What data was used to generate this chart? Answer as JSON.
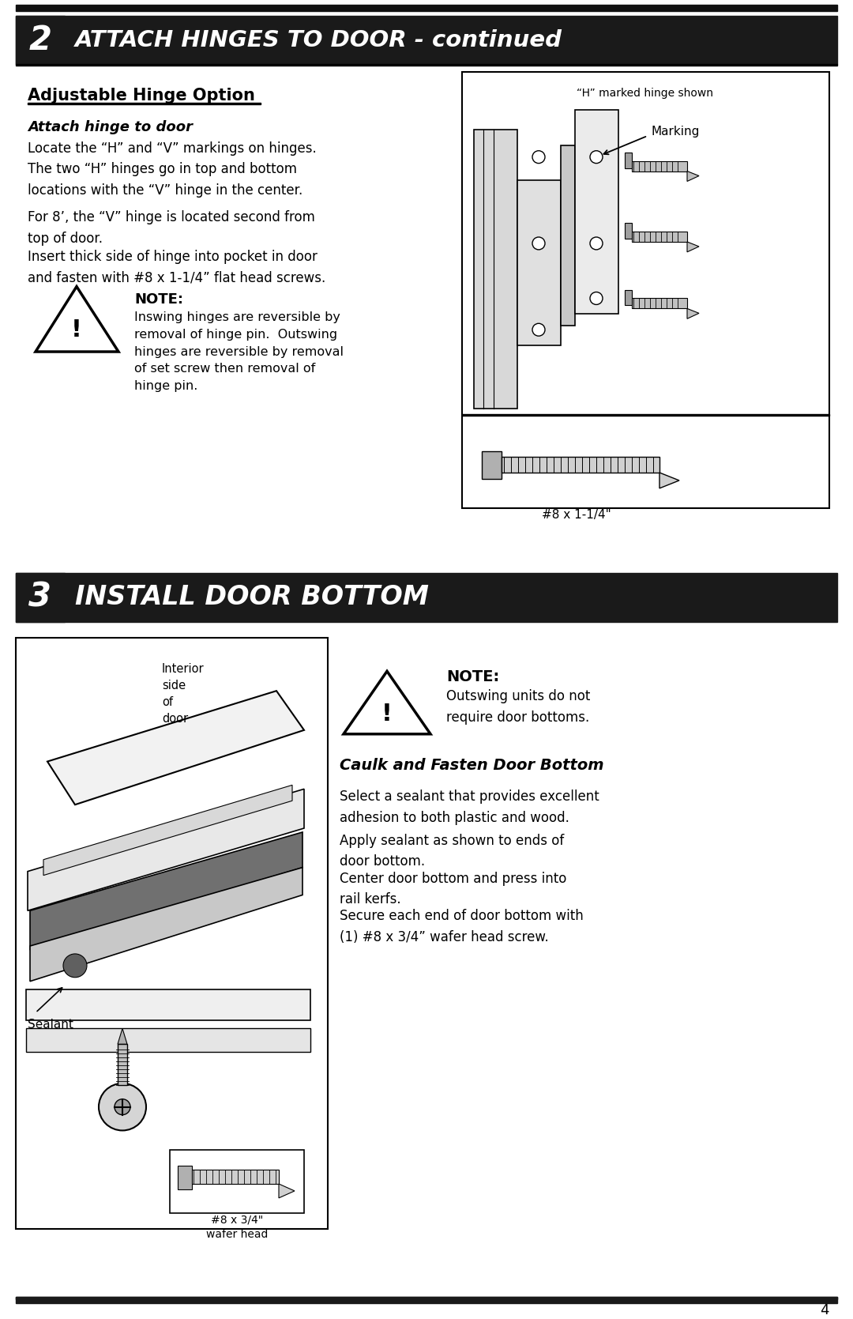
{
  "page_bg": "#ffffff",
  "header_bg": "#1a1a1a",
  "section2_title": "ATTACH HINGES TO DOOR - continued",
  "section2_number": "2",
  "section3_title": "INSTALL DOOR BOTTOM",
  "section3_number": "3",
  "subsection1_title": "Adjustable Hinge Option",
  "subsubsection1_title": "Attach hinge to door",
  "para1": "Locate the “H” and “V” markings on hinges.\nThe two “H” hinges go in top and bottom\nlocations with the “V” hinge in the center.",
  "para2": "For 8’, the “V” hinge is located second from\ntop of door.",
  "para3": "Insert thick side of hinge into pocket in door\nand fasten with #8 x 1-1/4” flat head screws.",
  "note1_title": "NOTE:",
  "note1_text": "Inswing hinges are reversible by\nremoval of hinge pin.  Outswing\nhinges are reversible by removal\nof set screw then removal of\nhinge pin.",
  "hinge_caption": "“H” marked hinge shown",
  "marking_label": "Marking",
  "screw1_label": "#8 x 1-1/4\"",
  "note2_title": "NOTE:",
  "note2_text": "Outswing units do not\nrequire door bottoms.",
  "caulk_title": "Caulk and Fasten Door Bottom",
  "caulk_para1": "Select a sealant that provides excellent\nadhesion to both plastic and wood.",
  "caulk_para2": "Apply sealant as shown to ends of\ndoor bottom.",
  "caulk_para3": "Center door bottom and press into\nrail kerfs.",
  "caulk_para4": "Secure each end of door bottom with\n(1) #8 x 3/4” wafer head screw.",
  "sealant_label": "Sealant",
  "screw2_label": "#8 x 3/4\"\nwafer head",
  "interior_label": "Interior\nside\nof\ndoor",
  "page_number": "4"
}
